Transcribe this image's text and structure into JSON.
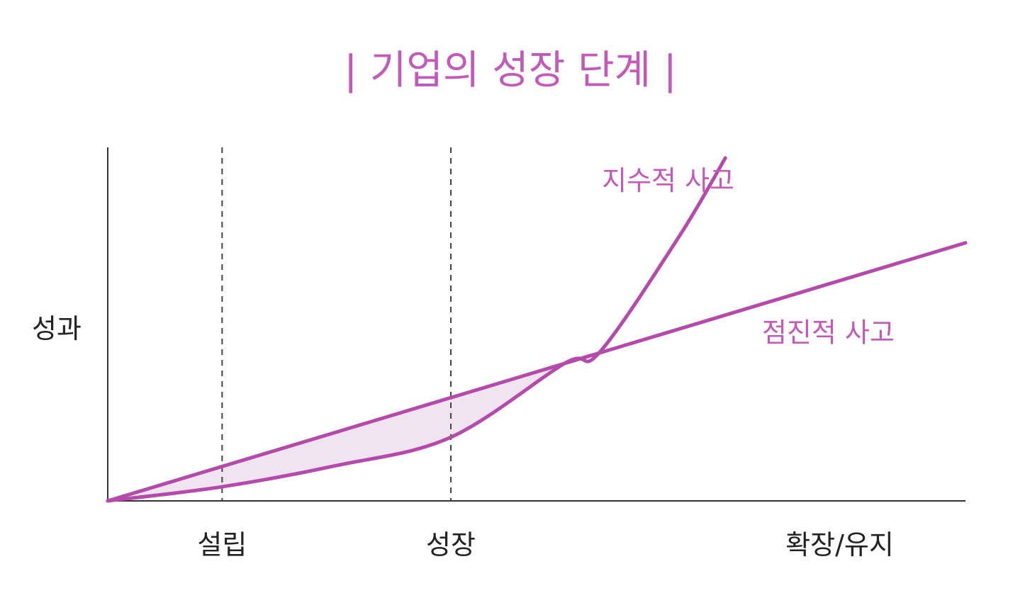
{
  "chart_data": {
    "type": "line",
    "title": "| 기업의 성장 단계 |",
    "ylabel": "성과",
    "xlabel": "",
    "stages": [
      "설립",
      "성장",
      "확장/유지"
    ],
    "stage_boundaries": [
      1,
      3
    ],
    "xlim": [
      0,
      7.5
    ],
    "ylim": [
      0,
      10
    ],
    "grid": false,
    "legend": "none",
    "series": [
      {
        "name": "지수적 사고",
        "function": "exponential",
        "x": [
          0,
          1,
          2,
          3,
          4,
          4.3,
          5,
          5.4
        ],
        "values": [
          0,
          0.4,
          1.0,
          1.8,
          3.9,
          4.2,
          7.5,
          9.7
        ]
      },
      {
        "name": "점진적 사고",
        "function": "linear",
        "x": [
          0,
          7.5
        ],
        "values": [
          0,
          7.3
        ]
      }
    ],
    "shaded_region": {
      "between": [
        "지수적 사고",
        "점진적 사고"
      ],
      "x_range": [
        0,
        4.3
      ]
    },
    "colors": {
      "accent": "#b44aaa",
      "label": "#c25ab8",
      "fill": "#efe4f0",
      "axis": "#333333",
      "divider": "#444444"
    }
  }
}
